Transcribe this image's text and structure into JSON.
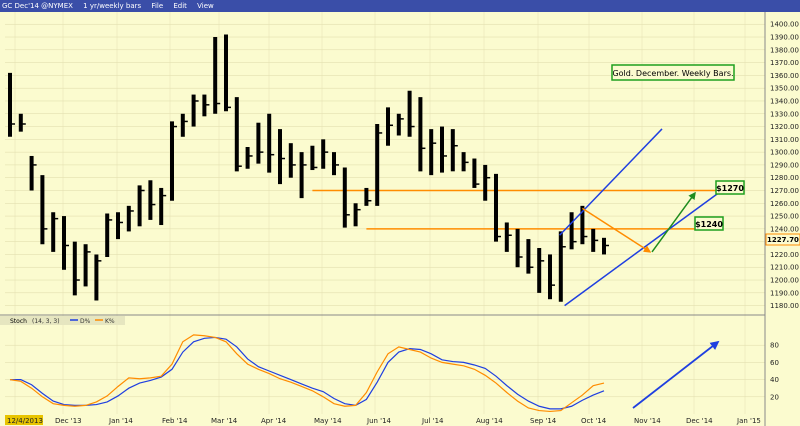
{
  "toolbar": {
    "symbol": "GC Dec'14 @NYMEX",
    "interval": "1 yr/weekly bars",
    "menu": [
      "File",
      "Edit",
      "View"
    ]
  },
  "colors": {
    "background": "#fbfbcf",
    "bars": "#000000",
    "level_lines": "#ff8c00",
    "channel": "#1f3fe0",
    "up_arrow": "#1e8c1e",
    "down_arrow": "#ff8c00",
    "stoch_d": "#1f3fe0",
    "stoch_k": "#ff8c00"
  },
  "annotations": {
    "title_box": "Gold. December. Weekly Bars.",
    "label_1270": "$1270",
    "label_1240": "$1240",
    "last_price": "1227.70"
  },
  "stoch_legend": {
    "name": "Stoch",
    "params": "(14, 3, 3)",
    "d_label": "D%",
    "k_label": "K%"
  },
  "chart_data": [
    {
      "type": "ohlc",
      "price_axis": {
        "ylim": [
          1175,
          1408
        ],
        "ticks": [
          1180,
          1190,
          1200,
          1210,
          1220,
          1230,
          1240,
          1250,
          1260,
          1270,
          1280,
          1290,
          1300,
          1310,
          1320,
          1330,
          1340,
          1350,
          1360,
          1370,
          1380,
          1390,
          1400
        ],
        "position": "right"
      },
      "x_ticks": [
        "12/4/2013",
        "Dec '13",
        "Jan '14",
        "Feb '14",
        "Mar '14",
        "Apr '14",
        "May '14",
        "Jun '14",
        "Jul '14",
        "Aug '14",
        "Sep '14",
        "Oct '14",
        "Nov '14",
        "Dec '14",
        "Jan '15"
      ],
      "bars": [
        {
          "h": 1362,
          "l": 1312,
          "c": 1322
        },
        {
          "h": 1330,
          "l": 1316,
          "c": 1322
        },
        {
          "h": 1297,
          "l": 1270,
          "c": 1290
        },
        {
          "h": 1282,
          "l": 1228,
          "c": 1240
        },
        {
          "h": 1253,
          "l": 1222,
          "c": 1248
        },
        {
          "h": 1250,
          "l": 1208,
          "c": 1227
        },
        {
          "h": 1230,
          "l": 1188,
          "c": 1200
        },
        {
          "h": 1228,
          "l": 1195,
          "c": 1222
        },
        {
          "h": 1220,
          "l": 1184,
          "c": 1215
        },
        {
          "h": 1252,
          "l": 1218,
          "c": 1247
        },
        {
          "h": 1253,
          "l": 1232,
          "c": 1245
        },
        {
          "h": 1258,
          "l": 1238,
          "c": 1254
        },
        {
          "h": 1274,
          "l": 1242,
          "c": 1270
        },
        {
          "h": 1278,
          "l": 1247,
          "c": 1259
        },
        {
          "h": 1272,
          "l": 1243,
          "c": 1266
        },
        {
          "h": 1324,
          "l": 1262,
          "c": 1320
        },
        {
          "h": 1330,
          "l": 1312,
          "c": 1324
        },
        {
          "h": 1345,
          "l": 1320,
          "c": 1340
        },
        {
          "h": 1345,
          "l": 1328,
          "c": 1337
        },
        {
          "h": 1390,
          "l": 1330,
          "c": 1338
        },
        {
          "h": 1392,
          "l": 1332,
          "c": 1335
        },
        {
          "h": 1343,
          "l": 1285,
          "c": 1289
        },
        {
          "h": 1304,
          "l": 1287,
          "c": 1297
        },
        {
          "h": 1323,
          "l": 1291,
          "c": 1300
        },
        {
          "h": 1330,
          "l": 1284,
          "c": 1298
        },
        {
          "h": 1318,
          "l": 1275,
          "c": 1295
        },
        {
          "h": 1307,
          "l": 1280,
          "c": 1290
        },
        {
          "h": 1300,
          "l": 1264,
          "c": 1290
        },
        {
          "h": 1305,
          "l": 1286,
          "c": 1288
        },
        {
          "h": 1310,
          "l": 1287,
          "c": 1300
        },
        {
          "h": 1300,
          "l": 1282,
          "c": 1290
        },
        {
          "h": 1288,
          "l": 1241,
          "c": 1251
        },
        {
          "h": 1260,
          "l": 1242,
          "c": 1255
        },
        {
          "h": 1272,
          "l": 1258,
          "c": 1262
        },
        {
          "h": 1322,
          "l": 1258,
          "c": 1315
        },
        {
          "h": 1335,
          "l": 1305,
          "c": 1321
        },
        {
          "h": 1330,
          "l": 1313,
          "c": 1326
        },
        {
          "h": 1348,
          "l": 1312,
          "c": 1320
        },
        {
          "h": 1343,
          "l": 1285,
          "c": 1303
        },
        {
          "h": 1318,
          "l": 1282,
          "c": 1307
        },
        {
          "h": 1320,
          "l": 1284,
          "c": 1297
        },
        {
          "h": 1318,
          "l": 1285,
          "c": 1305
        },
        {
          "h": 1300,
          "l": 1285,
          "c": 1292
        },
        {
          "h": 1295,
          "l": 1272,
          "c": 1275
        },
        {
          "h": 1290,
          "l": 1262,
          "c": 1280
        },
        {
          "h": 1283,
          "l": 1230,
          "c": 1234
        },
        {
          "h": 1245,
          "l": 1222,
          "c": 1235
        },
        {
          "h": 1240,
          "l": 1210,
          "c": 1218
        },
        {
          "h": 1232,
          "l": 1205,
          "c": 1210
        },
        {
          "h": 1225,
          "l": 1190,
          "c": 1215
        },
        {
          "h": 1220,
          "l": 1185,
          "c": 1196
        },
        {
          "h": 1238,
          "l": 1183,
          "c": 1226
        },
        {
          "h": 1253,
          "l": 1224,
          "c": 1230
        },
        {
          "h": 1258,
          "l": 1228,
          "c": 1234
        },
        {
          "h": 1240,
          "l": 1222,
          "c": 1231
        },
        {
          "h": 1233,
          "l": 1220,
          "c": 1227
        }
      ],
      "levels": [
        1270,
        1240
      ],
      "channel": {
        "upper": [
          1235,
          1290
        ],
        "lower": [
          1180,
          1265
        ]
      }
    },
    {
      "type": "line",
      "name": "Stoch (14, 3, 3)",
      "ylim": [
        0,
        100
      ],
      "y_ticks": [
        20,
        40,
        60,
        80
      ],
      "series": [
        {
          "name": "D%",
          "values": [
            40,
            40,
            34,
            24,
            15,
            11,
            10,
            10,
            11,
            14,
            21,
            30,
            36,
            39,
            43,
            52,
            72,
            84,
            88,
            89,
            87,
            78,
            64,
            55,
            50,
            45,
            40,
            35,
            30,
            26,
            18,
            12,
            10,
            17,
            37,
            60,
            72,
            76,
            75,
            70,
            63,
            61,
            60,
            57,
            53,
            44,
            33,
            23,
            15,
            9,
            6,
            6,
            9,
            16,
            22,
            27
          ]
        },
        {
          "name": "K%",
          "values": [
            40,
            38,
            30,
            20,
            12,
            10,
            9,
            10,
            14,
            21,
            32,
            42,
            41,
            42,
            44,
            58,
            84,
            92,
            91,
            89,
            84,
            70,
            58,
            52,
            47,
            41,
            37,
            32,
            27,
            20,
            12,
            9,
            10,
            25,
            49,
            70,
            78,
            75,
            72,
            65,
            60,
            58,
            56,
            52,
            45,
            36,
            25,
            15,
            7,
            4,
            3,
            4,
            13,
            22,
            33,
            36
          ]
        }
      ]
    }
  ]
}
